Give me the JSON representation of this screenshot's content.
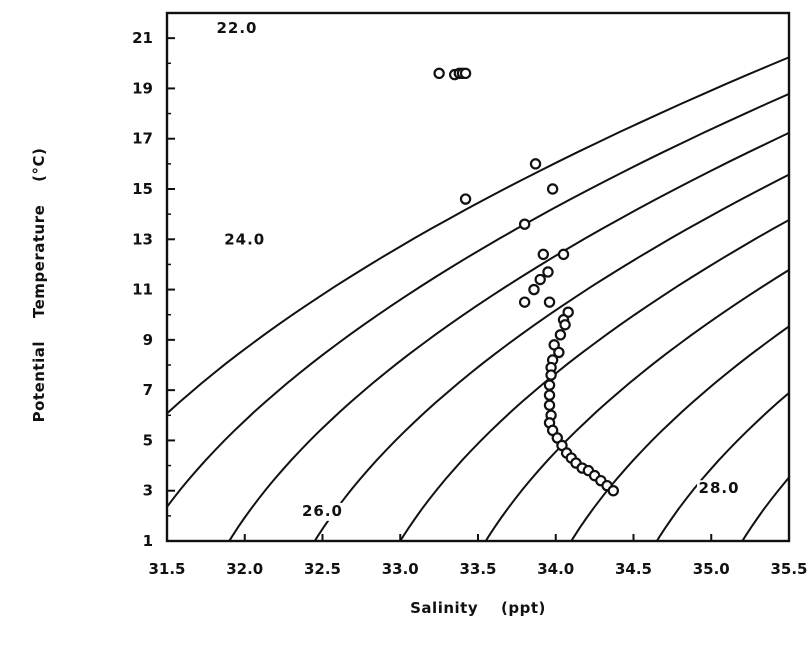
{
  "chart_data": {
    "type": "scatter",
    "title": "",
    "xlabel": "Salinity    (ppt)",
    "ylabel": "Potential    Temperature    (°C)",
    "xlim": [
      31.5,
      35.5
    ],
    "ylim": [
      1,
      22
    ],
    "x_ticks": [
      "31.5",
      "32.0",
      "32.5",
      "33.0",
      "33.5",
      "34.0",
      "34.5",
      "35.0",
      "35.5"
    ],
    "y_ticks": [
      "1",
      "3",
      "5",
      "7",
      "9",
      "11",
      "13",
      "15",
      "17",
      "19",
      "21"
    ],
    "grid": false,
    "legend": "none",
    "contour_labels": [
      {
        "text": "22.0",
        "s": 31.95,
        "t": 21.2
      },
      {
        "text": "24.0",
        "s": 32.0,
        "t": 12.8
      },
      {
        "text": "26.0",
        "s": 32.5,
        "t": 2.0
      },
      {
        "text": "28.0",
        "s": 35.05,
        "t": 2.9
      }
    ],
    "series": [
      {
        "x": [
          33.25,
          33.35,
          33.38,
          33.4,
          33.42,
          33.87,
          33.98,
          33.42,
          33.8,
          33.92,
          34.05,
          33.95,
          33.9,
          33.86,
          33.8,
          33.96,
          34.08,
          34.05,
          34.06,
          34.03,
          33.99,
          34.02,
          33.98,
          33.97,
          33.97,
          33.96,
          33.96,
          33.96,
          33.97,
          33.96,
          33.98,
          34.01,
          34.04,
          34.07,
          34.1,
          34.13,
          34.17,
          34.21,
          34.25,
          34.29,
          34.33,
          34.37
        ],
        "y": [
          19.6,
          19.55,
          19.6,
          19.6,
          19.6,
          16.0,
          15.0,
          14.6,
          13.6,
          12.4,
          12.4,
          11.7,
          11.4,
          11.0,
          10.5,
          10.5,
          10.1,
          9.8,
          9.6,
          9.2,
          8.8,
          8.5,
          8.2,
          7.9,
          7.6,
          7.2,
          6.8,
          6.4,
          6.0,
          5.7,
          5.4,
          5.1,
          4.8,
          4.5,
          4.3,
          4.1,
          3.9,
          3.8,
          3.6,
          3.4,
          3.2,
          3.0
        ]
      }
    ]
  }
}
